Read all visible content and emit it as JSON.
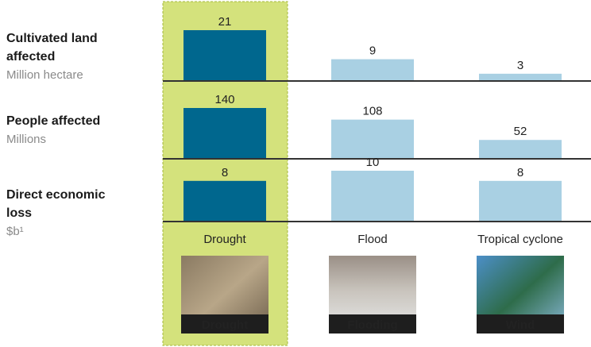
{
  "chart_data": [
    {
      "type": "bar",
      "title": "Cultivated land affected",
      "subtitle": "Million hectare",
      "values": [
        21,
        9,
        3
      ],
      "colors": [
        "#00678e",
        "#a9d0e3",
        "#a9d0e3"
      ]
    },
    {
      "type": "bar",
      "title": "People affected",
      "subtitle": "Millions",
      "values": [
        140,
        108,
        52
      ],
      "colors": [
        "#00678e",
        "#a9d0e3",
        "#a9d0e3"
      ]
    },
    {
      "type": "bar",
      "title": "Direct economic loss",
      "subtitle": "$b¹",
      "values": [
        8,
        10,
        8
      ],
      "colors": [
        "#00678e",
        "#a9d0e3",
        "#a9d0e3"
      ],
      "categories": [
        "Drought",
        "Flood",
        "Tropical cyclone"
      ]
    }
  ],
  "images": [
    "Drought",
    "Flooding",
    "Wind"
  ]
}
